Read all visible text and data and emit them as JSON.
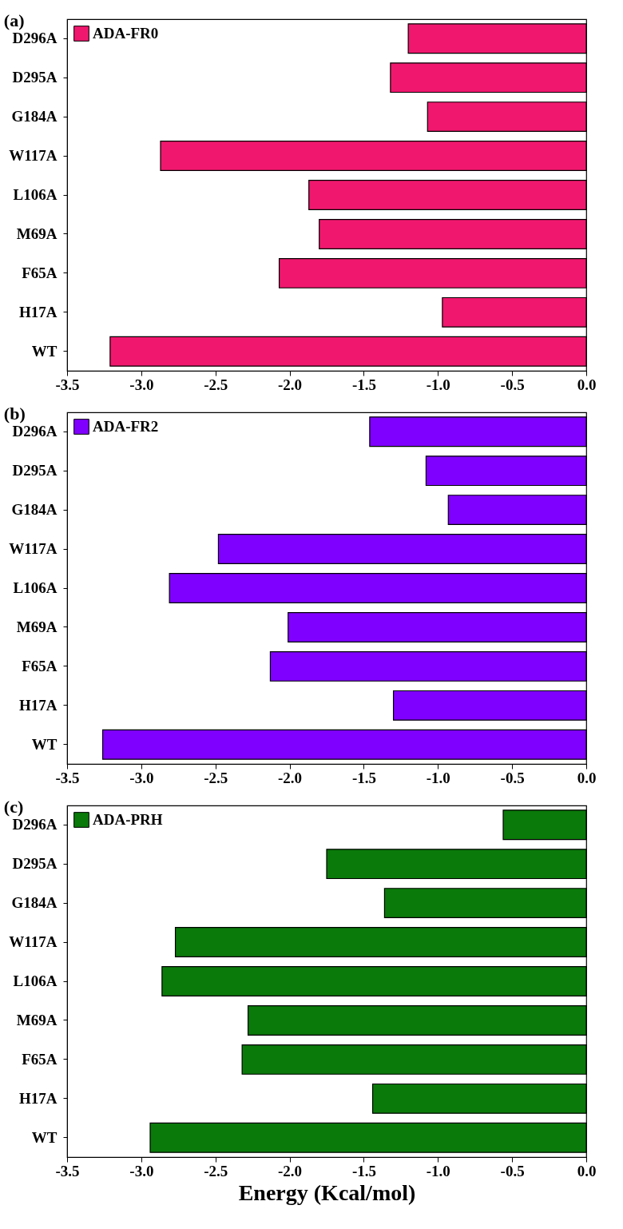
{
  "chart_data": [
    {
      "type": "bar",
      "title": "(a)",
      "orientation": "horizontal",
      "categories": [
        "D296A",
        "D295A",
        "G184A",
        "W117A",
        "L106A",
        "M69A",
        "F65A",
        "H17A",
        "WT"
      ],
      "series": [
        {
          "name": "ADA-FR0",
          "color": "#f0186e",
          "values": [
            -1.2,
            -1.32,
            -1.07,
            -2.87,
            -1.87,
            -1.8,
            -2.07,
            -0.97,
            -3.21
          ]
        }
      ],
      "xlim": [
        -3.5,
        0
      ],
      "xticks": [
        {
          "value": -3.5,
          "label": "-3.5"
        },
        {
          "value": -3,
          "label": "-3.0"
        },
        {
          "value": -2.5,
          "label": "-2.5"
        },
        {
          "value": -2,
          "label": "-2.0"
        },
        {
          "value": -1.5,
          "label": "-1.5"
        },
        {
          "value": -1,
          "label": "-1.0"
        },
        {
          "value": -0.5,
          "label": "-0.5"
        },
        {
          "value": 0,
          "label": "0.0"
        }
      ],
      "legend": "top left"
    },
    {
      "type": "bar",
      "title": "(b)",
      "orientation": "horizontal",
      "categories": [
        "D296A",
        "D295A",
        "G184A",
        "W117A",
        "L106A",
        "M69A",
        "F65A",
        "H17A",
        "WT"
      ],
      "series": [
        {
          "name": "ADA-FR2",
          "color": "#8000ff",
          "values": [
            -1.46,
            -1.08,
            -0.93,
            -2.48,
            -2.81,
            -2.01,
            -2.13,
            -1.3,
            -3.26
          ]
        }
      ],
      "xlim": [
        -3.5,
        0
      ],
      "xticks": [
        {
          "value": -3.5,
          "label": "-3.5"
        },
        {
          "value": -3,
          "label": "-3.0"
        },
        {
          "value": -2.5,
          "label": "-2.5"
        },
        {
          "value": -2,
          "label": "-2.0"
        },
        {
          "value": -1.5,
          "label": "-1.5"
        },
        {
          "value": -1,
          "label": "-1.0"
        },
        {
          "value": -0.5,
          "label": "-0.5"
        },
        {
          "value": 0,
          "label": "0.0"
        }
      ],
      "legend": "top left"
    },
    {
      "type": "bar",
      "title": "(c)",
      "orientation": "horizontal",
      "xlabel": "Energy (Kcal/mol)",
      "categories": [
        "D296A",
        "D295A",
        "G184A",
        "W117A",
        "L106A",
        "M69A",
        "F65A",
        "H17A",
        "WT"
      ],
      "series": [
        {
          "name": "ADA-PRH",
          "color": "#0a7a0a",
          "values": [
            -0.56,
            -1.75,
            -1.36,
            -2.77,
            -2.86,
            -2.28,
            -2.32,
            -1.44,
            -2.94
          ]
        }
      ],
      "xlim": [
        -3.5,
        0
      ],
      "xticks": [
        {
          "value": -3.5,
          "label": "-3.5"
        },
        {
          "value": -3,
          "label": "-3.0"
        },
        {
          "value": -2.5,
          "label": "-2.5"
        },
        {
          "value": -2,
          "label": "-2.0"
        },
        {
          "value": -1.5,
          "label": "-1.5"
        },
        {
          "value": -1,
          "label": "-1.0"
        },
        {
          "value": -0.5,
          "label": "-0.5"
        },
        {
          "value": 0,
          "label": "0.0"
        }
      ],
      "legend": "top left"
    }
  ]
}
